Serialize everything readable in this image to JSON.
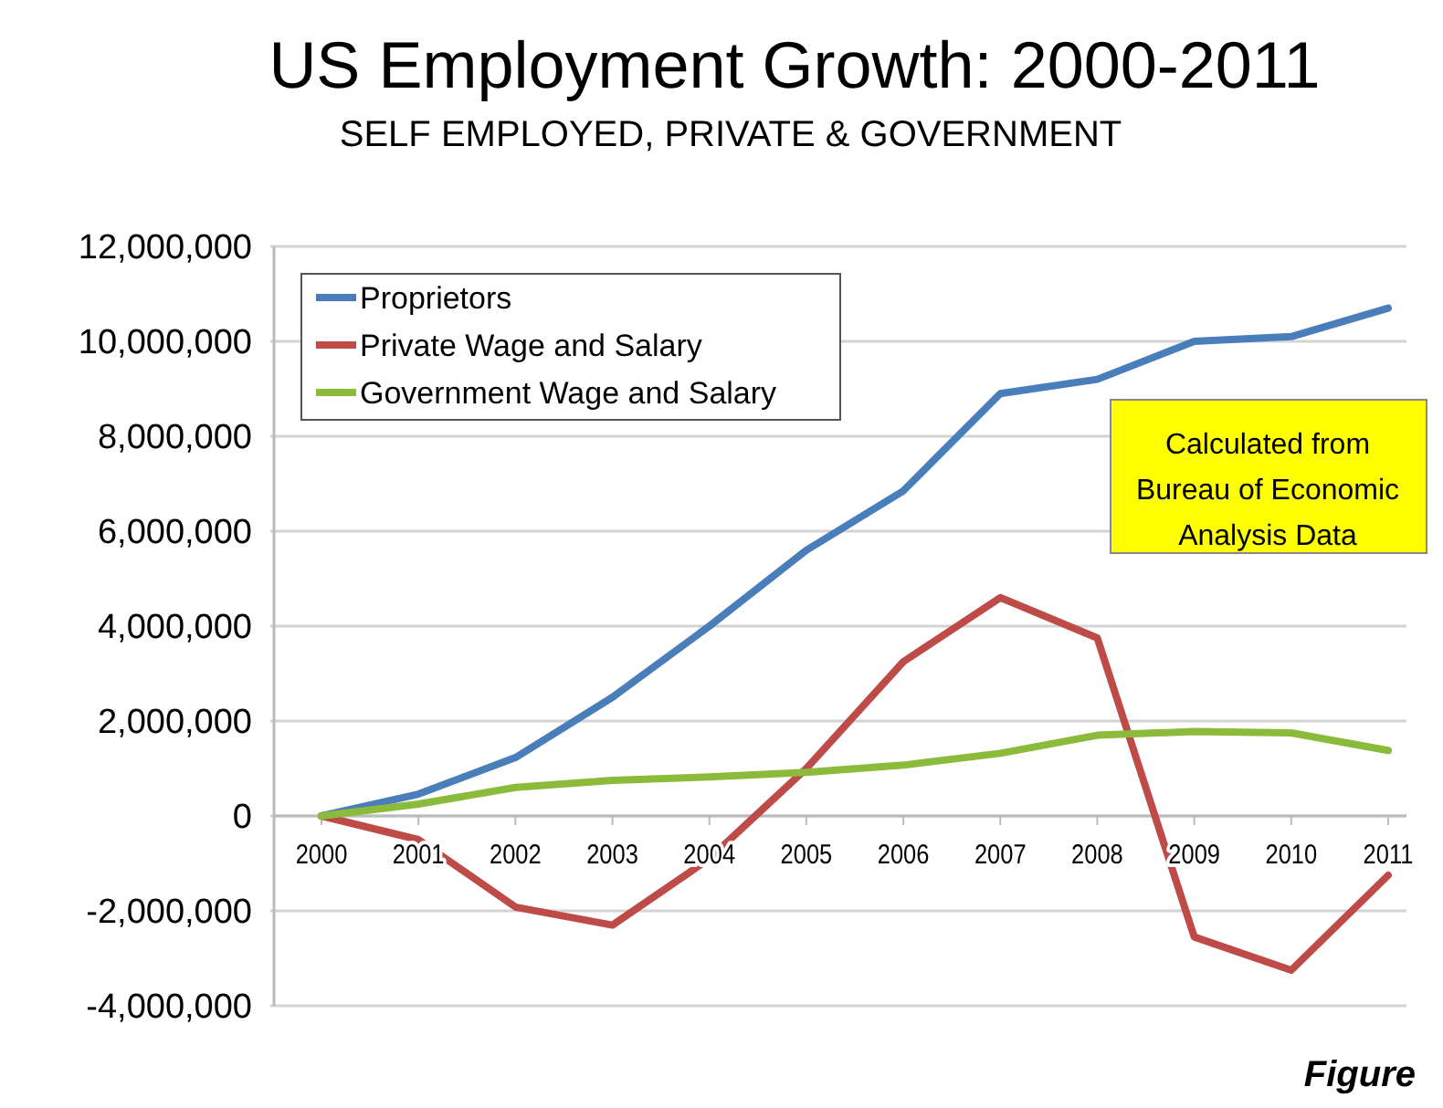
{
  "chart_data": {
    "type": "line",
    "title": "US Employment Growth: 2000-2011",
    "subtitle": "SELF EMPLOYED, PRIVATE & GOVERNMENT",
    "categories": [
      "2000",
      "2001",
      "2002",
      "2003",
      "2004",
      "2005",
      "2006",
      "2007",
      "2008",
      "2009",
      "2010",
      "2011"
    ],
    "series": [
      {
        "name": "Proprietors",
        "color": "#4a7ebb",
        "values": [
          0,
          460000,
          1230000,
          2500000,
          4000000,
          5600000,
          6850000,
          8900000,
          9200000,
          10000000,
          10100000,
          10700000
        ]
      },
      {
        "name": "Private Wage and Salary",
        "color": "#be4b48",
        "values": [
          0,
          -500000,
          -1920000,
          -2300000,
          -900000,
          1000000,
          3250000,
          4600000,
          3750000,
          -2550000,
          -3250000,
          -1250000
        ]
      },
      {
        "name": "Government Wage and Salary",
        "color": "#8cbb3c",
        "values": [
          0,
          250000,
          600000,
          750000,
          820000,
          920000,
          1070000,
          1320000,
          1700000,
          1780000,
          1750000,
          1380000
        ]
      }
    ],
    "ylim": [
      -4000000,
      12000000
    ],
    "yticks": [
      {
        "value": -4000000,
        "label": "-4,000,000"
      },
      {
        "value": -2000000,
        "label": "-2,000,000"
      },
      0,
      {
        "value": 2000000,
        "label": "2,000,000"
      },
      {
        "value": 4000000,
        "label": "4,000,000"
      },
      {
        "value": 6000000,
        "label": "6,000,000"
      },
      {
        "value": 8000000,
        "label": "8,000,000"
      },
      {
        "value": 10000000,
        "label": "10,000,000"
      },
      {
        "value": 12000000,
        "label": "12,000,000"
      }
    ],
    "grid": "y",
    "legend": "top left",
    "marker": "none",
    "line_style": "solid",
    "annotations": [
      "Calculated from Bureau of Economic Analysis Data",
      "Figure"
    ]
  }
}
